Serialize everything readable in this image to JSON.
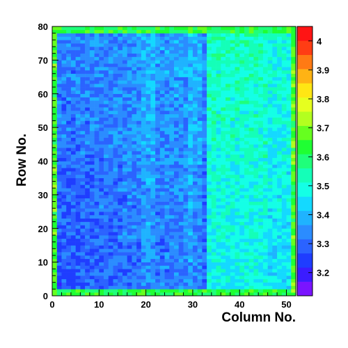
{
  "chart_data": {
    "type": "heatmap",
    "title": "",
    "xlabel": "Column No.",
    "ylabel": "Row No.",
    "xlim": [
      0,
      52
    ],
    "ylim": [
      0,
      80
    ],
    "x_ticks": [
      "0",
      "10",
      "20",
      "30",
      "40",
      "50"
    ],
    "y_ticks": [
      "0",
      "10",
      "20",
      "30",
      "40",
      "50",
      "60",
      "70",
      "80"
    ],
    "grid": false,
    "legend": "colorbar-right",
    "colorbar": {
      "zlim": [
        3.12,
        4.05
      ],
      "tick_values": [
        3.2,
        3.3,
        3.4,
        3.5,
        3.6,
        3.7,
        3.8,
        3.9,
        4.0
      ],
      "tick_labels": [
        "3.2",
        "3.3",
        "3.4",
        "3.5",
        "3.6",
        "3.7",
        "3.8",
        "3.9",
        "4"
      ],
      "colors": [
        "#7a14ff",
        "#3b1cff",
        "#1f3dff",
        "#2b63ff",
        "#2b8cff",
        "#1fb3ff",
        "#14d9ff",
        "#14ffe6",
        "#14ffb8",
        "#1fff7a",
        "#1fff33",
        "#66ff1f",
        "#b3ff1f",
        "#e6ff1f",
        "#ffe614",
        "#ffb314",
        "#ff7a14",
        "#ff3d14",
        "#ff1414"
      ]
    },
    "grid_size": {
      "columns": 52,
      "rows": 80
    },
    "data_description": "Mean value per (column,row) cell; values roughly 3.2-3.5 on the left half, a low band near column 32, higher 3.45-3.6 for columns 33-45, and ~3.65-3.75 along edges."
  }
}
